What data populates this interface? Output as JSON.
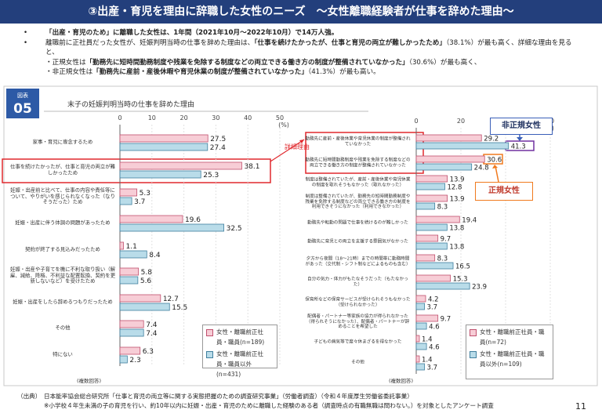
{
  "header": {
    "title": "③出産・育児を理由に辞職した女性のニーズ　～女性離職経験者が仕事を辞めた理由～"
  },
  "bullets": [
    {
      "parts": [
        {
          "text": "「出産・育児のため」に離職した女性は、1年間（2021年10月～2022年10月）で14万人強。",
          "bold": true
        }
      ]
    },
    {
      "parts": [
        {
          "text": "離職前に正社員だった女性が、妊娠判明当時の仕事を辞めた理由は、",
          "bold": false
        },
        {
          "text": "「仕事を続けたかったが、仕事と育児の両立が難しかったため」",
          "bold": true
        },
        {
          "text": "（38.1%）が最も高く、詳細な理由を見ると、",
          "bold": false
        }
      ]
    },
    {
      "parts": [
        {
          "text": "・正規女性は",
          "bold": false
        },
        {
          "text": "「勤務先に短時間勤務制度や残業を免除する制度などの両立できる働き方の制度が整備されていなかった」",
          "bold": true
        },
        {
          "text": "（30.6%）が最も高く、",
          "bold": false
        }
      ]
    },
    {
      "parts": [
        {
          "text": "・非正規女性は",
          "bold": false
        },
        {
          "text": "「勤務先に産前・産後休暇や育児休業の制度が整備されていなかった」",
          "bold": true
        },
        {
          "text": "（41.3%）が最も高い。",
          "bold": false
        }
      ]
    }
  ],
  "figure": {
    "label": "図表",
    "number": "05",
    "title": "末子の妊娠判明当時の仕事を辞めた理由"
  },
  "annotations": {
    "detail": "詳細理由",
    "nonregular": "非正規女性",
    "regular": "正規女性"
  },
  "chart_data": [
    {
      "type": "bar",
      "orientation": "horizontal",
      "categories": [
        "家事・育児に専念するため",
        "仕事を続けたかったが、仕事と育児の両立が難しかったため",
        "妊娠・出産前と比べて、仕事の内容や責任等について、やりがいを感じられなくなった（なりそうだった）ため",
        "妊娠・出産に伴う体調の問題があったため",
        "契約が終了する見込みだったため",
        "妊娠・出産や子育てを機に不利な取り扱い（解雇、減給、降格、不利益な配置転換、契約を更新しないなど）を受けたため",
        "妊娠・出産をしたら辞めるつもりだったため",
        "その他",
        "特にない"
      ],
      "series": [
        {
          "name": "女性・離職前正社員・職員(n=189)",
          "color": "#f7cdd6",
          "edgecolor": "#c0506e",
          "values": [
            27.5,
            38.1,
            5.3,
            19.6,
            1.1,
            5.8,
            12.7,
            7.4,
            6.3
          ]
        },
        {
          "name": "女性・離職前正社員・職員以外(n=431)",
          "color": "#b9dce9",
          "edgecolor": "#3f7f9e",
          "values": [
            27.4,
            25.3,
            3.7,
            32.5,
            8.4,
            5.6,
            15.5,
            7.4,
            2.3
          ]
        }
      ],
      "xlim": [
        0,
        50
      ],
      "xticks": [
        0,
        10,
        20,
        30,
        40,
        50
      ],
      "unit": "(%)",
      "note": "(複数回答)",
      "legend": "lower right"
    },
    {
      "type": "bar",
      "orientation": "horizontal",
      "categories": [
        "勤務先に産前・産後休業や育児休業の制度が整備されていなかった",
        "勤務先に短時間勤務制度や残業を免除する制度などの両立できる働き方の制度が整備されていなかった",
        "制度は整備されていたが、産前・産後休業や育児休業の制度を取れそうもなかった（取れなかった）",
        "制度は整備されていたが、勤務先の短時間勤務制度や残業を免除する制度などの両立できる働き方の制度を利用できそうになかった（利用できなかった）",
        "勤務先や転勤の問題で仕事を続けるのが難しかった",
        "勤務先に育児との両立を支援する雰囲気がなかった",
        "夕方から夜間（18～21時）までの時間帯に勤務時間があった（交代制・シフト制などによるものも含む）",
        "自分の気力・体力がもたなそうだった（もたなかった）",
        "保育所などの保育サービスが受けられそうもなかった（受けられなかった）",
        "配偶者・パートナー等家族の協力が得られなかった（得られそうになかった）、配偶者・パートナーが辞めることを希望した",
        "子どもの病気等で度々休まざるを得なかった",
        "その他"
      ],
      "series": [
        {
          "name": "女性・離職前正社員・職員(n=72)",
          "color": "#f7cdd6",
          "edgecolor": "#c0506e",
          "values": [
            29.2,
            30.6,
            13.9,
            13.9,
            19.4,
            9.7,
            8.3,
            15.3,
            4.2,
            9.7,
            1.4,
            1.4
          ]
        },
        {
          "name": "女性・離職前正社員・職員以外(n=109)",
          "color": "#b9dce9",
          "edgecolor": "#3f7f9e",
          "values": [
            41.3,
            24.8,
            12.8,
            8.3,
            13.8,
            13.8,
            16.5,
            23.9,
            3.7,
            4.6,
            4.6,
            3.7
          ]
        }
      ],
      "xlim": [
        0,
        60
      ],
      "xticks": [
        0,
        20,
        40,
        60
      ],
      "unit": "(%)",
      "note": "(複数回答)",
      "legend": "lower right"
    }
  ],
  "source": [
    "（出典）",
    "日本能率協会総合研究所「仕事と育児の両立等に関する実態把握のための調査研究事業」（労働者調査）（令和４年度厚生労働省委託事業）",
    "※小学校４年生未満の子の育児を行い、約10年以内に妊娠・出産・育児のために離職した経験のある者（調査時点の有職無職は問わない。）を対象としたアンケート調査"
  ],
  "page_number": "11"
}
